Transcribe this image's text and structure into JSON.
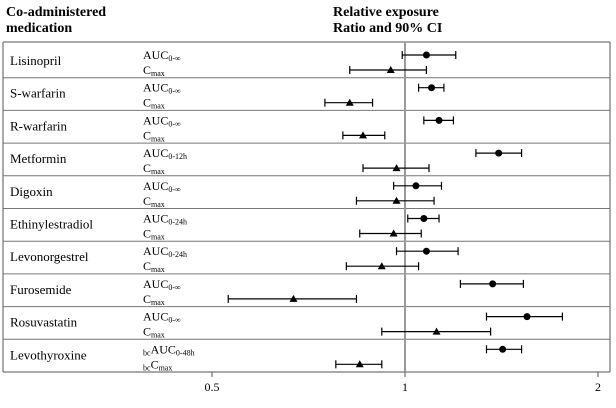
{
  "header": {
    "left_line1": "Co-administered",
    "left_line2": "medication",
    "right_line1": "Relative exposure",
    "right_line2": "Ratio and 90% CI"
  },
  "chart_data": {
    "type": "forest",
    "x_scale": "log",
    "xlim": [
      0.35,
      2.1
    ],
    "x_ticks": [
      {
        "value": 0.5,
        "label": "0.5"
      },
      {
        "value": 1,
        "label": "1"
      },
      {
        "value": 2,
        "label": "2"
      }
    ],
    "reference_line": 1,
    "markers": {
      "auc": "circle",
      "cmax": "triangle"
    },
    "rows": [
      {
        "drug": "Lisinopril",
        "params": [
          {
            "pre": "",
            "base": "AUC",
            "sub": "0-∞",
            "marker": "circle",
            "est": 1.08,
            "lo": 0.99,
            "hi": 1.2
          },
          {
            "pre": "",
            "base": "C",
            "sub": "max",
            "marker": "triangle",
            "est": 0.95,
            "lo": 0.82,
            "hi": 1.08
          }
        ]
      },
      {
        "drug": "S-warfarin",
        "params": [
          {
            "pre": "",
            "base": "AUC",
            "sub": "0-∞",
            "marker": "circle",
            "est": 1.1,
            "lo": 1.05,
            "hi": 1.15
          },
          {
            "pre": "",
            "base": "C",
            "sub": "max",
            "marker": "triangle",
            "est": 0.82,
            "lo": 0.75,
            "hi": 0.89
          }
        ]
      },
      {
        "drug": "R-warfarin",
        "params": [
          {
            "pre": "",
            "base": "AUC",
            "sub": "0-∞",
            "marker": "circle",
            "est": 1.13,
            "lo": 1.07,
            "hi": 1.19
          },
          {
            "pre": "",
            "base": "C",
            "sub": "max",
            "marker": "triangle",
            "est": 0.86,
            "lo": 0.8,
            "hi": 0.93
          }
        ]
      },
      {
        "drug": "Metformin",
        "params": [
          {
            "pre": "",
            "base": "AUC",
            "sub": "0-12h",
            "marker": "circle",
            "est": 1.4,
            "lo": 1.29,
            "hi": 1.52
          },
          {
            "pre": "",
            "base": "C",
            "sub": "max",
            "marker": "triangle",
            "est": 0.97,
            "lo": 0.86,
            "hi": 1.09
          }
        ]
      },
      {
        "drug": "Digoxin",
        "params": [
          {
            "pre": "",
            "base": "AUC",
            "sub": "0-∞",
            "marker": "circle",
            "est": 1.04,
            "lo": 0.96,
            "hi": 1.14
          },
          {
            "pre": "",
            "base": "C",
            "sub": "max",
            "marker": "triangle",
            "est": 0.97,
            "lo": 0.84,
            "hi": 1.11
          }
        ]
      },
      {
        "drug": "Ethinylestradiol",
        "params": [
          {
            "pre": "",
            "base": "AUC",
            "sub": "0-24h",
            "marker": "circle",
            "est": 1.07,
            "lo": 1.01,
            "hi": 1.13
          },
          {
            "pre": "",
            "base": "C",
            "sub": "max",
            "marker": "triangle",
            "est": 0.96,
            "lo": 0.85,
            "hi": 1.06
          }
        ]
      },
      {
        "drug": "Levonorgestrel",
        "params": [
          {
            "pre": "",
            "base": "AUC",
            "sub": "0-24h",
            "marker": "circle",
            "est": 1.08,
            "lo": 0.97,
            "hi": 1.21
          },
          {
            "pre": "",
            "base": "C",
            "sub": "max",
            "marker": "triangle",
            "est": 0.92,
            "lo": 0.81,
            "hi": 1.05
          }
        ]
      },
      {
        "drug": "Furosemide",
        "params": [
          {
            "pre": "",
            "base": "AUC",
            "sub": "0-∞",
            "marker": "circle",
            "est": 1.37,
            "lo": 1.22,
            "hi": 1.53
          },
          {
            "pre": "",
            "base": "C",
            "sub": "max",
            "marker": "triangle",
            "est": 0.67,
            "lo": 0.53,
            "hi": 0.84
          }
        ]
      },
      {
        "drug": "Rosuvastatin",
        "params": [
          {
            "pre": "",
            "base": "AUC",
            "sub": "0-∞",
            "marker": "circle",
            "est": 1.55,
            "lo": 1.34,
            "hi": 1.76
          },
          {
            "pre": "",
            "base": "C",
            "sub": "max",
            "marker": "triangle",
            "est": 1.12,
            "lo": 0.92,
            "hi": 1.36
          }
        ]
      },
      {
        "drug": "Levothyroxine",
        "params": [
          {
            "pre": "bc",
            "base": "AUC",
            "sub": "0-48h",
            "marker": "circle",
            "est": 1.42,
            "lo": 1.34,
            "hi": 1.52
          },
          {
            "pre": "bc",
            "base": "C",
            "sub": "max",
            "marker": "triangle",
            "est": 0.85,
            "lo": 0.78,
            "hi": 0.92
          }
        ]
      }
    ]
  }
}
